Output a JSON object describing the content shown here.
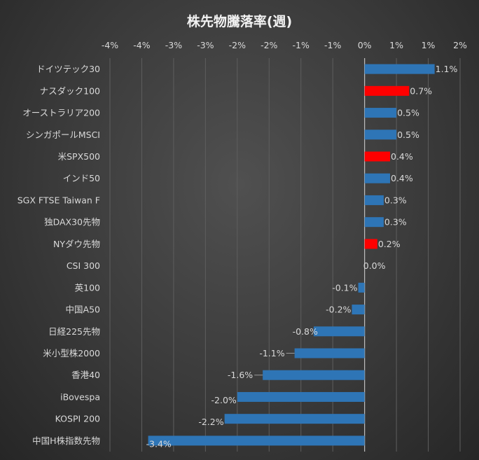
{
  "chart_data": {
    "type": "bar",
    "orientation": "horizontal",
    "title": "株先物騰落率(週)",
    "xlabel": "",
    "ylabel": "",
    "xlim": [
      -4.0,
      1.5
    ],
    "x_tick_step": 0.5,
    "x_tick_labels": [
      "-4%",
      "-4%",
      "-3%",
      "-3%",
      "-2%",
      "-2%",
      "-1%",
      "-1%",
      "0%",
      "1%",
      "1%",
      "2%"
    ],
    "grid": true,
    "legend": "none",
    "categories": [
      "ドイツテック30",
      "ナスダック100",
      "オーストラリア200",
      "シンガポールMSCI",
      "米SPX500",
      "インド50",
      "SGX FTSE Taiwan F",
      "独DAX30先物",
      "NYダウ先物",
      "CSI 300",
      "英100",
      "中国A50",
      "日経225先物",
      "米小型株2000",
      "香港40",
      "iBovespa",
      "KOSPI 200",
      "中国H株指数先物"
    ],
    "values": [
      1.1,
      0.7,
      0.5,
      0.5,
      0.4,
      0.4,
      0.3,
      0.3,
      0.2,
      0.0,
      -0.1,
      -0.2,
      -0.8,
      -1.1,
      -1.6,
      -2.0,
      -2.2,
      -3.4
    ],
    "data_labels": [
      "1.1%",
      "0.7%",
      "0.5%",
      "0.5%",
      "0.4%",
      "0.4%",
      "0.3%",
      "0.3%",
      "0.2%",
      "0.0%",
      "-0.1%",
      "-0.2%",
      "-0.8%",
      "-1.1%",
      "-1.6%",
      "-2.0%",
      "-2.2%",
      "-3.4%"
    ],
    "highlight": [
      false,
      true,
      false,
      false,
      true,
      false,
      false,
      false,
      true,
      false,
      false,
      false,
      false,
      false,
      false,
      false,
      false,
      false
    ],
    "colors": {
      "default": "#2E75B6",
      "highlight": "#FF0000"
    }
  }
}
